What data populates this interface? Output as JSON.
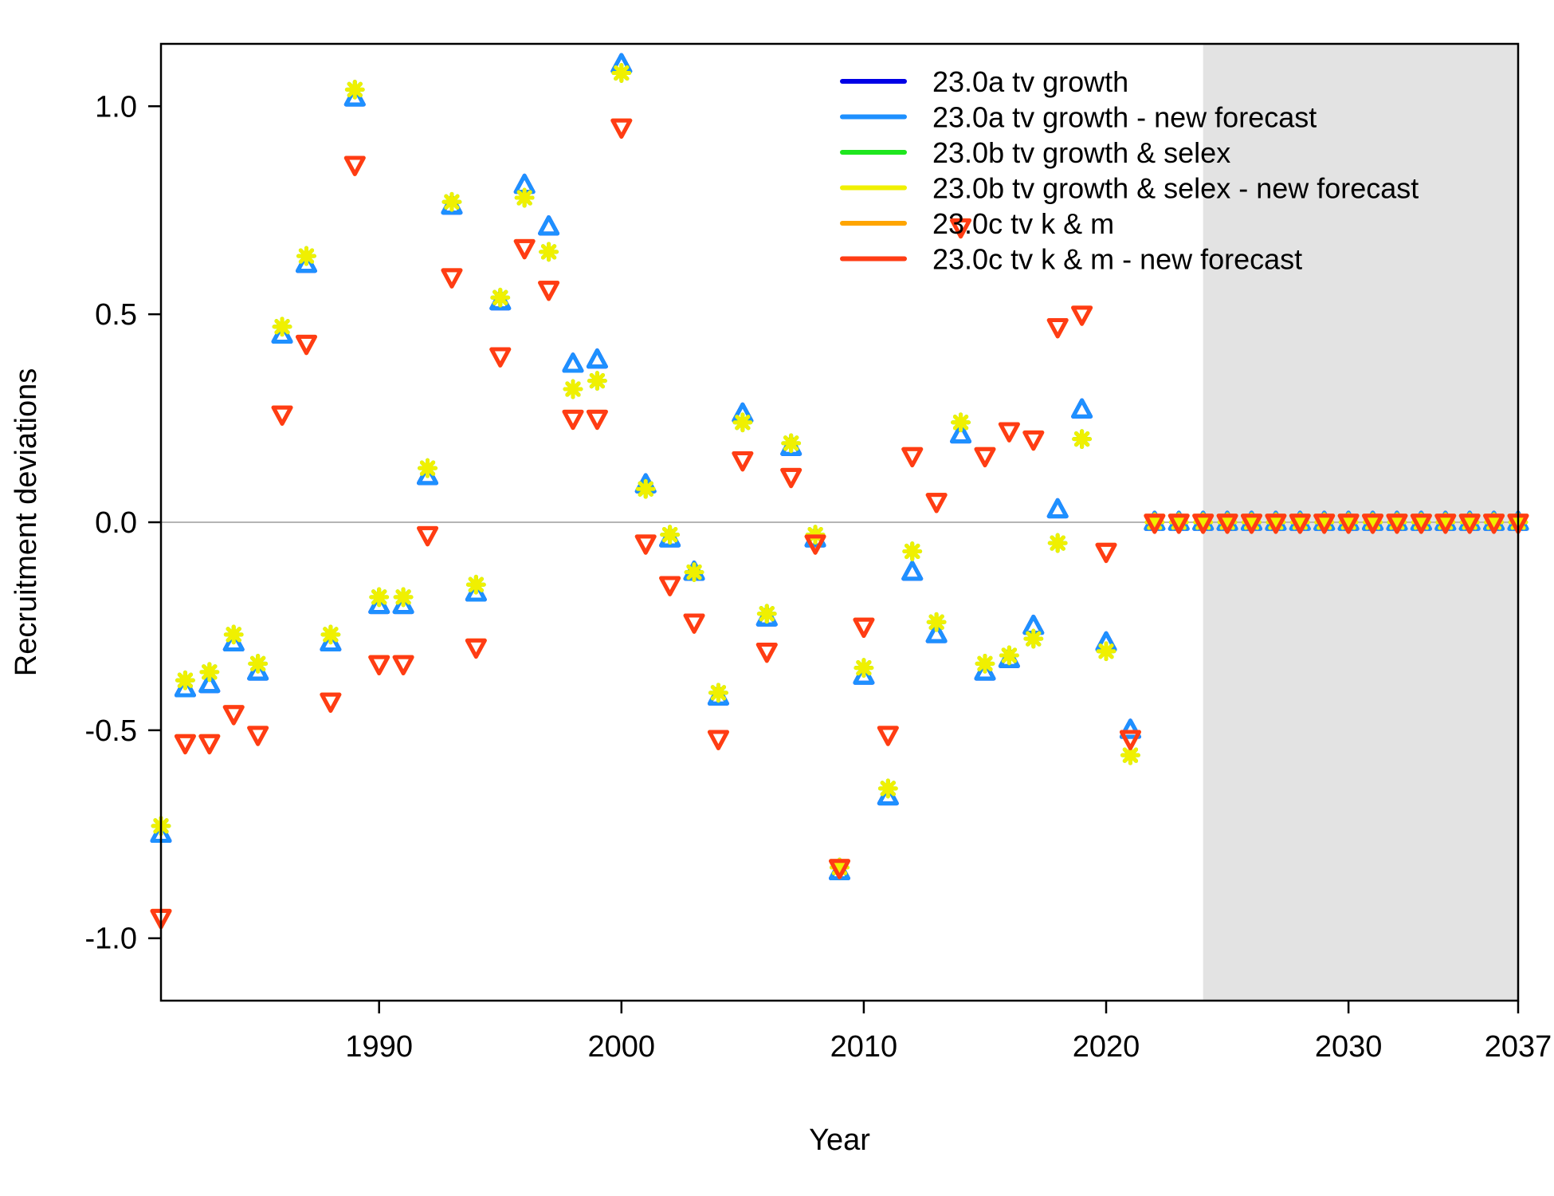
{
  "chart_data": {
    "type": "scatter",
    "xlabel": "Year",
    "ylabel": "Recruitment deviations",
    "xlim": [
      1981,
      2037
    ],
    "ylim": [
      -1.15,
      1.15
    ],
    "forecast_shade_from": 2024,
    "forecast_shade_color": "#e3e3e3",
    "zero_line_color": "#b5b5b5",
    "grid": false,
    "legend_position": "top-right",
    "x_ticks": [
      {
        "value": 1990,
        "label": "1990"
      },
      {
        "value": 2000,
        "label": "2000"
      },
      {
        "value": 2010,
        "label": "2010"
      },
      {
        "value": 2020,
        "label": "2020"
      },
      {
        "value": 2030,
        "label": "2030"
      },
      {
        "value": 2037,
        "label": "2037"
      }
    ],
    "y_ticks": [
      {
        "value": 1.0,
        "label": "1.0"
      },
      {
        "value": 0.5,
        "label": "0.5"
      },
      {
        "value": 0.0,
        "label": "0.0"
      },
      {
        "value": -0.5,
        "label": "-0.5"
      },
      {
        "value": -1.0,
        "label": "-1.0"
      }
    ],
    "x": [
      1981,
      1982,
      1983,
      1984,
      1985,
      1986,
      1987,
      1988,
      1989,
      1990,
      1991,
      1992,
      1993,
      1994,
      1995,
      1996,
      1997,
      1998,
      1999,
      2000,
      2001,
      2002,
      2003,
      2004,
      2005,
      2006,
      2007,
      2008,
      2009,
      2010,
      2011,
      2012,
      2013,
      2014,
      2015,
      2016,
      2017,
      2018,
      2019,
      2020,
      2021,
      2022,
      2023,
      2024,
      2025,
      2026,
      2027,
      2028,
      2029,
      2030,
      2031,
      2032,
      2033,
      2034,
      2035,
      2036,
      2037
    ],
    "series": [
      {
        "name": "23.0a tv growth",
        "color": "#0000e6",
        "marker": "triangle",
        "values": [
          -0.75,
          -0.4,
          -0.39,
          -0.29,
          -0.36,
          0.45,
          0.62,
          -0.29,
          1.02,
          -0.2,
          -0.2,
          0.11,
          0.76,
          -0.17,
          0.53,
          0.81,
          0.71,
          0.38,
          0.39,
          1.1,
          0.09,
          -0.04,
          -0.12,
          -0.42,
          0.26,
          -0.23,
          0.18,
          -0.04,
          -0.84,
          -0.37,
          -0.66,
          -0.12,
          -0.27,
          0.21,
          -0.36,
          -0.33,
          -0.25,
          0.03,
          0.27,
          -0.29,
          -0.5,
          0,
          0,
          0,
          0,
          0,
          0,
          0,
          0,
          0,
          0,
          0,
          0,
          0,
          0,
          0,
          0
        ]
      },
      {
        "name": "23.0a tv growth - new forecast",
        "color": "#1e90ff",
        "marker": "triangle",
        "values": [
          -0.75,
          -0.4,
          -0.39,
          -0.29,
          -0.36,
          0.45,
          0.62,
          -0.29,
          1.02,
          -0.2,
          -0.2,
          0.11,
          0.76,
          -0.17,
          0.53,
          0.81,
          0.71,
          0.38,
          0.39,
          1.1,
          0.09,
          -0.04,
          -0.12,
          -0.42,
          0.26,
          -0.23,
          0.18,
          -0.04,
          -0.84,
          -0.37,
          -0.66,
          -0.12,
          -0.27,
          0.21,
          -0.36,
          -0.33,
          -0.25,
          0.03,
          0.27,
          -0.29,
          -0.5,
          0,
          0,
          0,
          0,
          0,
          0,
          0,
          0,
          0,
          0,
          0,
          0,
          0,
          0,
          0,
          0
        ]
      },
      {
        "name": "23.0b tv growth & selex",
        "color": "#1ee61e",
        "marker": "asterisk",
        "values": [
          -0.73,
          -0.38,
          -0.36,
          -0.27,
          -0.34,
          0.47,
          0.64,
          -0.27,
          1.04,
          -0.18,
          -0.18,
          0.13,
          0.77,
          -0.15,
          0.54,
          0.78,
          0.65,
          0.32,
          0.34,
          1.08,
          0.08,
          -0.03,
          -0.12,
          -0.41,
          0.24,
          -0.22,
          0.19,
          -0.03,
          -0.83,
          -0.35,
          -0.64,
          -0.07,
          -0.24,
          0.24,
          -0.34,
          -0.32,
          -0.28,
          -0.05,
          0.2,
          -0.31,
          -0.56,
          0,
          0,
          0,
          0,
          0,
          0,
          0,
          0,
          0,
          0,
          0,
          0,
          0,
          0,
          0,
          0
        ]
      },
      {
        "name": "23.0b tv growth & selex - new forecast",
        "color": "#f0f000",
        "marker": "asterisk",
        "values": [
          -0.73,
          -0.38,
          -0.36,
          -0.27,
          -0.34,
          0.47,
          0.64,
          -0.27,
          1.04,
          -0.18,
          -0.18,
          0.13,
          0.77,
          -0.15,
          0.54,
          0.78,
          0.65,
          0.32,
          0.34,
          1.08,
          0.08,
          -0.03,
          -0.12,
          -0.41,
          0.24,
          -0.22,
          0.19,
          -0.03,
          -0.83,
          -0.35,
          -0.64,
          -0.07,
          -0.24,
          0.24,
          -0.34,
          -0.32,
          -0.28,
          -0.05,
          0.2,
          -0.31,
          -0.56,
          0,
          0,
          0,
          0,
          0,
          0,
          0,
          0,
          0,
          0,
          0,
          0,
          0,
          0,
          0,
          0
        ]
      },
      {
        "name": "23.0c tv k & m",
        "color": "#ffa500",
        "marker": "triangle-down",
        "values": [
          -0.95,
          -0.53,
          -0.53,
          -0.46,
          -0.51,
          0.26,
          0.43,
          -0.43,
          0.86,
          -0.34,
          -0.34,
          -0.03,
          0.59,
          -0.3,
          0.4,
          0.66,
          0.56,
          0.25,
          0.25,
          0.95,
          -0.05,
          -0.15,
          -0.24,
          -0.52,
          0.15,
          -0.31,
          0.11,
          -0.05,
          -0.83,
          -0.25,
          -0.51,
          0.16,
          0.05,
          0.71,
          0.16,
          0.22,
          0.2,
          0.47,
          0.5,
          -0.07,
          -0.52,
          0,
          0,
          0,
          0,
          0,
          0,
          0,
          0,
          0,
          0,
          0,
          0,
          0,
          0,
          0,
          0
        ]
      },
      {
        "name": "23.0c tv k & m - new forecast",
        "color": "#ff3c14",
        "marker": "triangle-down",
        "values": [
          -0.95,
          -0.53,
          -0.53,
          -0.46,
          -0.51,
          0.26,
          0.43,
          -0.43,
          0.86,
          -0.34,
          -0.34,
          -0.03,
          0.59,
          -0.3,
          0.4,
          0.66,
          0.56,
          0.25,
          0.25,
          0.95,
          -0.05,
          -0.15,
          -0.24,
          -0.52,
          0.15,
          -0.31,
          0.11,
          -0.05,
          -0.83,
          -0.25,
          -0.51,
          0.16,
          0.05,
          0.71,
          0.16,
          0.22,
          0.2,
          0.47,
          0.5,
          -0.07,
          -0.52,
          0,
          0,
          0,
          0,
          0,
          0,
          0,
          0,
          0,
          0,
          0,
          0,
          0,
          0,
          0,
          0
        ]
      }
    ]
  }
}
